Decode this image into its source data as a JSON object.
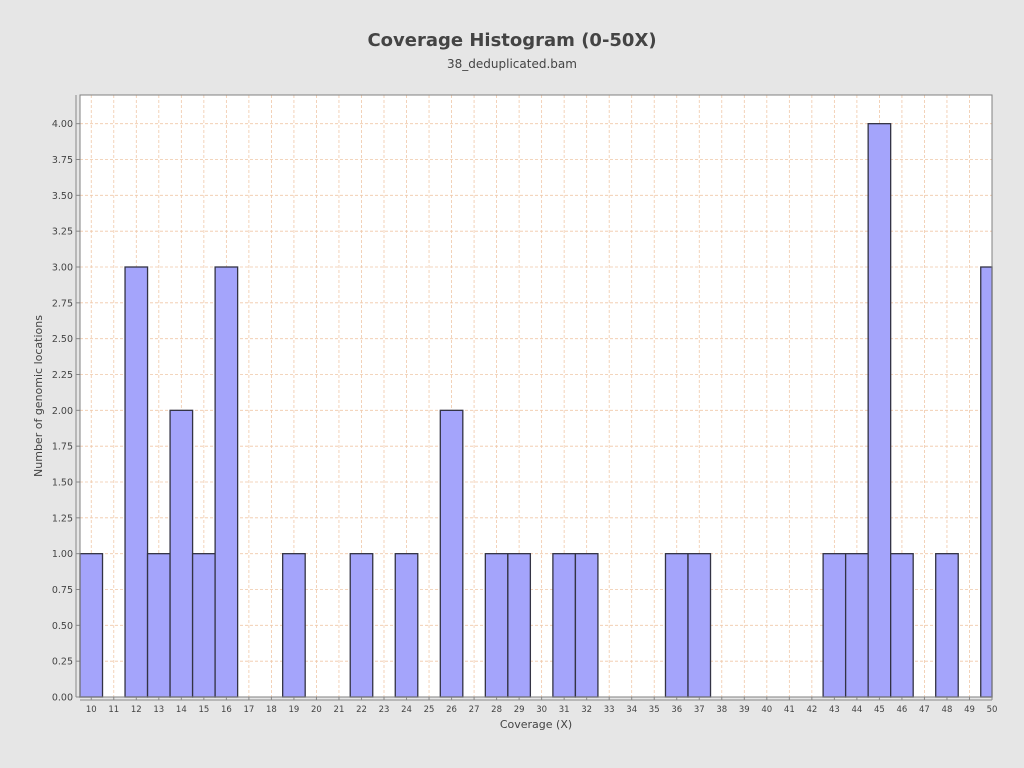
{
  "chart_data": {
    "type": "bar",
    "title": "Coverage Histogram (0-50X)",
    "subtitle": "38_deduplicated.bam",
    "xlabel": "Coverage (X)",
    "ylabel": "Number of genomic locations",
    "categories": [
      "10",
      "11",
      "12",
      "13",
      "14",
      "15",
      "16",
      "17",
      "18",
      "19",
      "20",
      "21",
      "22",
      "23",
      "24",
      "25",
      "26",
      "27",
      "28",
      "29",
      "30",
      "31",
      "32",
      "33",
      "34",
      "35",
      "36",
      "37",
      "38",
      "39",
      "40",
      "41",
      "42",
      "43",
      "44",
      "45",
      "46",
      "47",
      "48",
      "49",
      "50"
    ],
    "values": [
      1,
      0,
      3,
      1,
      2,
      1,
      3,
      0,
      0,
      1,
      0,
      0,
      1,
      0,
      1,
      0,
      2,
      0,
      1,
      1,
      0,
      1,
      1,
      0,
      0,
      0,
      1,
      1,
      0,
      0,
      0,
      0,
      0,
      1,
      1,
      4,
      1,
      0,
      1,
      0,
      3
    ],
    "ylim": [
      0,
      4.2
    ],
    "yticks": [
      "0.00",
      "0.25",
      "0.50",
      "0.75",
      "1.00",
      "1.25",
      "1.50",
      "1.75",
      "2.00",
      "2.25",
      "2.50",
      "2.75",
      "3.00",
      "3.25",
      "3.50",
      "3.75",
      "4.00"
    ],
    "grid": true,
    "legend": "none",
    "colors": {
      "bar_fill": "#a4a4fb",
      "bar_stroke": "#333344",
      "grid": "#f0c8a8",
      "plot_bg": "#ffffff",
      "page_bg": "#e6e6e6",
      "text": "#444444"
    }
  }
}
